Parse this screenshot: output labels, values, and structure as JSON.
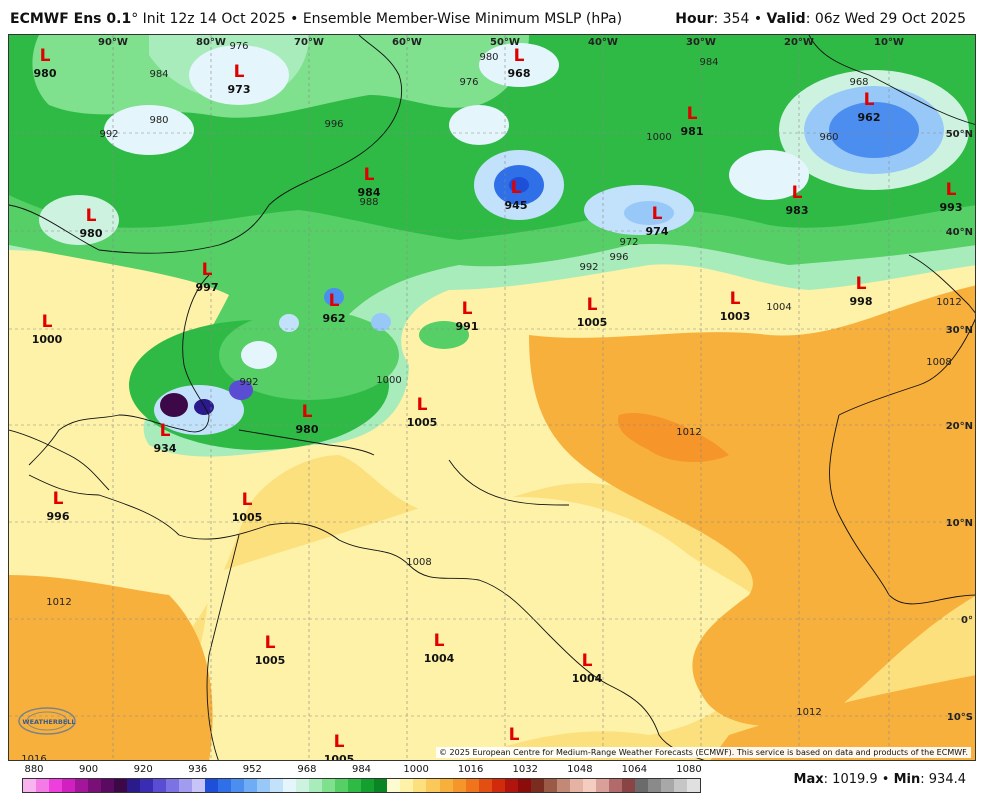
{
  "header": {
    "model": "ECMWF Ens 0.1",
    "degree": "°",
    "init": "Init 12z 14 Oct 2025",
    "bullet": "•",
    "field": "Ensemble Member-Wise Minimum MSLP (hPa)",
    "hour_label": "Hour",
    "hour_value": ": 354",
    "valid_label": "Valid",
    "valid_value": ": 06z Wed 29 Oct 2025"
  },
  "grid": {
    "lon_labels": [
      "90°W",
      "80°W",
      "70°W",
      "60°W",
      "50°W",
      "40°W",
      "30°W",
      "20°W",
      "10°W"
    ],
    "lat_labels": [
      "50°N",
      "40°N",
      "30°N",
      "20°N",
      "10°N",
      "0°",
      "10°S"
    ]
  },
  "lows": [
    {
      "label": "L",
      "value": "980"
    },
    {
      "label": "L",
      "value": "973"
    },
    {
      "label": "L",
      "value": "968"
    },
    {
      "label": "L",
      "value": "962"
    },
    {
      "label": "L",
      "value": "981"
    },
    {
      "label": "L",
      "value": "984"
    },
    {
      "label": "L",
      "value": "945"
    },
    {
      "label": "L",
      "value": "974"
    },
    {
      "label": "L",
      "value": "983"
    },
    {
      "label": "L",
      "value": "993"
    },
    {
      "label": "L",
      "value": "980"
    },
    {
      "label": "L",
      "value": "997"
    },
    {
      "label": "L",
      "value": "1000"
    },
    {
      "label": "L",
      "value": "962"
    },
    {
      "label": "L",
      "value": "991"
    },
    {
      "label": "L",
      "value": "1005"
    },
    {
      "label": "L",
      "value": "1003"
    },
    {
      "label": "L",
      "value": "998"
    },
    {
      "label": "L",
      "value": "1005"
    },
    {
      "label": "L",
      "value": "934"
    },
    {
      "label": "L",
      "value": "980"
    },
    {
      "label": "L",
      "value": "996"
    },
    {
      "label": "L",
      "value": "1005"
    },
    {
      "label": "L",
      "value": "1005"
    },
    {
      "label": "L",
      "value": "1004"
    },
    {
      "label": "L",
      "value": "1004"
    },
    {
      "label": "L",
      "value": "1005"
    },
    {
      "label": "L",
      "value": ""
    }
  ],
  "isobar_labels": [
    "976",
    "984",
    "980",
    "992",
    "996",
    "1000",
    "1004",
    "1008",
    "1012",
    "1016",
    "988",
    "972",
    "968",
    "960"
  ],
  "copyright": "© 2025 European Centre for Medium-Range Weather Forecasts (ECMWF). This service is based on data and products of the ECMWF.",
  "logo": "WEATHERBELL",
  "colorbar": {
    "ticks": [
      "880",
      "900",
      "920",
      "936",
      "952",
      "968",
      "984",
      "1000",
      "1016",
      "1032",
      "1048",
      "1064",
      "1080"
    ],
    "colors": [
      "#f9b3ef",
      "#f47ae6",
      "#ee3fdc",
      "#d11fc0",
      "#a3159a",
      "#7a0f78",
      "#5b0a61",
      "#3c0848",
      "#2a1a8c",
      "#3b2cb4",
      "#5a4dd3",
      "#7b72e4",
      "#a29cf0",
      "#c7c4f7",
      "#1e4fd8",
      "#2f6fe8",
      "#4b8ef0",
      "#6eacf5",
      "#97c8f8",
      "#c2e2fb",
      "#e4f5fb",
      "#cdf3e0",
      "#a8ecbb",
      "#7fe08e",
      "#55cf66",
      "#2fba45",
      "#13a02f",
      "#0a8524",
      "#fdfbd0",
      "#fdf2a8",
      "#fde07e",
      "#fbc95a",
      "#f8b03d",
      "#f5952a",
      "#ef741c",
      "#e34f12",
      "#d12b0c",
      "#b0140c",
      "#8c0c0c",
      "#7a2d1f",
      "#9b5a45",
      "#c28a76",
      "#e5b3a4",
      "#f4cdc0",
      "#d9a09a",
      "#b26a6a",
      "#8a4444",
      "#6b6b6b",
      "#8a8a8a",
      "#a8a8a8",
      "#c6c6c6",
      "#e0e0e0"
    ]
  },
  "stats": {
    "max_label": "Max",
    "max_value": ": 1019.9",
    "sep": "•",
    "min_label": "Min",
    "min_value": ": 934.4"
  }
}
